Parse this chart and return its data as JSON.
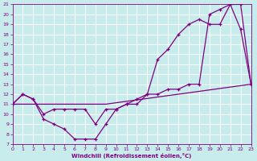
{
  "xlabel": "Windchill (Refroidissement éolien,°C)",
  "bg_color": "#c8ecec",
  "line_color": "#800080",
  "grid_color": "#ffffff",
  "xlim": [
    0,
    23
  ],
  "ylim": [
    7,
    21
  ],
  "xticks": [
    0,
    1,
    2,
    3,
    4,
    5,
    6,
    7,
    8,
    9,
    10,
    11,
    12,
    13,
    14,
    15,
    16,
    17,
    18,
    19,
    20,
    21,
    22,
    23
  ],
  "yticks": [
    7,
    8,
    9,
    10,
    11,
    12,
    13,
    14,
    15,
    16,
    17,
    18,
    19,
    20,
    21
  ],
  "series1_x": [
    0,
    1,
    2,
    3,
    4,
    5,
    6,
    7,
    8,
    9,
    10,
    11,
    12,
    13,
    14,
    15,
    16,
    17,
    18,
    19,
    20,
    21,
    22,
    23
  ],
  "series1_y": [
    11,
    12,
    11.5,
    9.5,
    9.0,
    8.5,
    7.5,
    7.5,
    7.5,
    9.0,
    10.5,
    11,
    11,
    12,
    15.5,
    16.5,
    18.0,
    19.0,
    19.5,
    19.0,
    19.0,
    21.0,
    21.0,
    13.0
  ],
  "series2_x": [
    0,
    1,
    2,
    3,
    4,
    5,
    6,
    7,
    8,
    9,
    10,
    11,
    12,
    13,
    14,
    15,
    16,
    17,
    18,
    19,
    20,
    21,
    22,
    23
  ],
  "series2_y": [
    11,
    12,
    11.5,
    10.0,
    10.5,
    10.5,
    10.5,
    10.5,
    9.0,
    10.5,
    10.5,
    11.0,
    11.5,
    12.0,
    12.0,
    12.5,
    12.5,
    13.0,
    13.0,
    20.0,
    20.5,
    21.0,
    18.5,
    13.0
  ],
  "series3_x": [
    0,
    9,
    23
  ],
  "series3_y": [
    11,
    11,
    13
  ]
}
